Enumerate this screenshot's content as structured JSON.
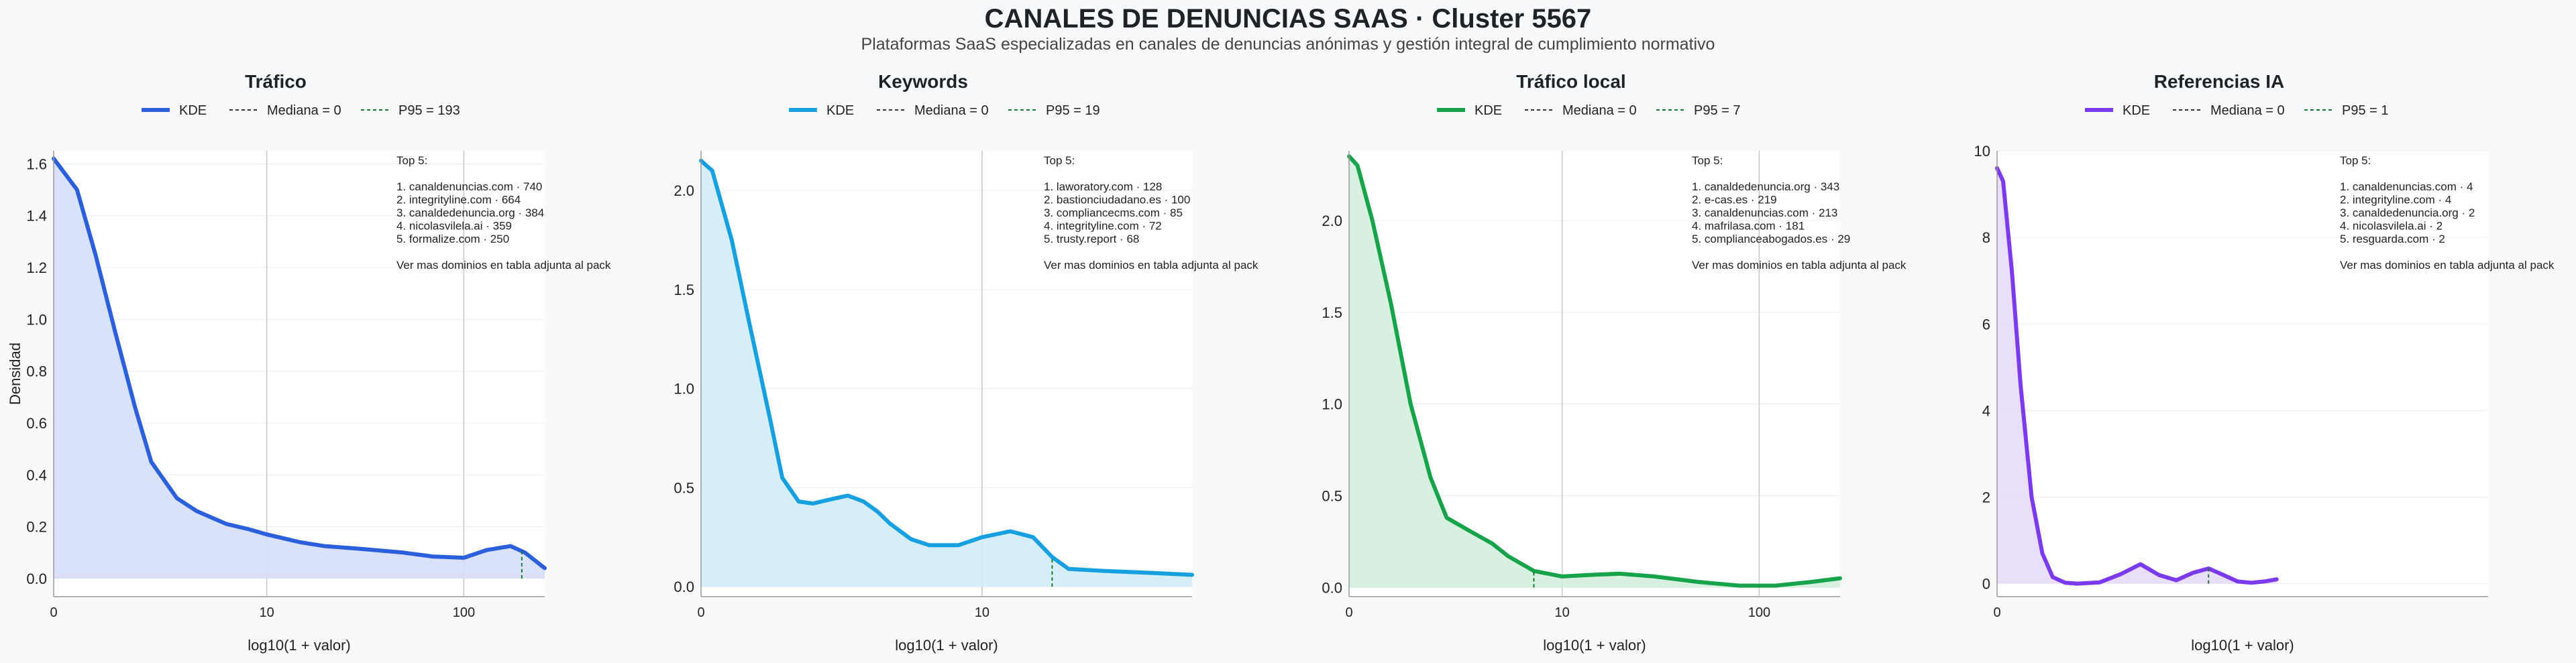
{
  "title": "CANALES DE DENUNCIAS SAAS · Cluster 5567",
  "subtitle": "Plataformas SaaS especializadas en canales de denuncias anónimas y gestión integral de cumplimiento normativo",
  "chart_data": [
    {
      "type": "area",
      "title": "Tráfico",
      "xlabel": "log10(1 + valor)",
      "ylabel": "Densidad",
      "color": "#2b5fdb",
      "fill": "#d5dffa",
      "xscale": "log10(1 + value)",
      "xlim": [
        0,
        250
      ],
      "ylim": [
        -0.07,
        1.65
      ],
      "yticks": [
        "0.0",
        "0.2",
        "0.4",
        "0.6",
        "0.8",
        "1.0",
        "1.2",
        "1.4",
        "1.6"
      ],
      "ytick_values": [
        0,
        0.2,
        0.4,
        0.6,
        0.8,
        1.0,
        1.2,
        1.4,
        1.6
      ],
      "xticks": [
        "0",
        "10",
        "100"
      ],
      "xtick_values": [
        0,
        10,
        100
      ],
      "legend": [
        "KDE",
        "Mediana = 0",
        "P95 = 193"
      ],
      "median": 0,
      "p95": 193,
      "series": [
        {
          "name": "KDE",
          "x": [
            0,
            0.3,
            0.6,
            1,
            1.5,
            2,
            3,
            4,
            6,
            8,
            10,
            15,
            20,
            30,
            50,
            70,
            100,
            130,
            170,
            200,
            250
          ],
          "y": [
            1.62,
            1.5,
            1.25,
            0.95,
            0.66,
            0.45,
            0.31,
            0.26,
            0.21,
            0.19,
            0.17,
            0.14,
            0.125,
            0.115,
            0.1,
            0.085,
            0.08,
            0.11,
            0.125,
            0.1,
            0.04
          ]
        }
      ],
      "annotation": [
        "Top 5:",
        "",
        "1. canaldenuncias.com · 740",
        "2. integrityline.com · 664",
        "3. canaldedenuncia.org · 384",
        "4. nicolasvilela.ai · 359",
        "5. formalize.com · 250",
        "",
        "Ver mas dominios en tabla adjunta al pack"
      ]
    },
    {
      "type": "area",
      "title": "Keywords",
      "xlabel": "log10(1 + valor)",
      "ylabel": "",
      "color": "#17a0e0",
      "fill": "#d2ecfa",
      "xscale": "log10(1 + value)",
      "xlim": [
        0,
        65
      ],
      "ylim": [
        -0.05,
        2.2
      ],
      "yticks": [
        "0.0",
        "0.5",
        "1.0",
        "1.5",
        "2.0"
      ],
      "ytick_values": [
        0,
        0.5,
        1.0,
        1.5,
        2.0
      ],
      "xticks": [
        "0",
        "10"
      ],
      "xtick_values": [
        0,
        10
      ],
      "legend": [
        "KDE",
        "Mediana = 0",
        "P95 = 19"
      ],
      "median": 0,
      "p95": 19,
      "series": [
        {
          "name": "KDE",
          "x": [
            0,
            0.1,
            0.3,
            0.5,
            0.8,
            1,
            1.3,
            1.6,
            2,
            2.5,
            3,
            3.5,
            4,
            5,
            6,
            8,
            10,
            13,
            16,
            19,
            22,
            30,
            45,
            65
          ],
          "y": [
            2.15,
            2.1,
            1.75,
            1.35,
            0.85,
            0.55,
            0.43,
            0.42,
            0.44,
            0.46,
            0.43,
            0.38,
            0.32,
            0.24,
            0.21,
            0.21,
            0.25,
            0.28,
            0.25,
            0.15,
            0.09,
            0.08,
            0.07,
            0.06
          ]
        }
      ],
      "annotation": [
        "Top 5:",
        "",
        "1. laworatory.com · 128",
        "2. bastionciudadano.es · 100",
        "3. compliancecms.com · 85",
        "4. integrityline.com · 72",
        "5. trusty.report · 68",
        "",
        "Ver mas dominios en tabla adjunta al pack"
      ]
    },
    {
      "type": "area",
      "title": "Tráfico local",
      "xlabel": "log10(1 + valor)",
      "ylabel": "",
      "color": "#16a34a",
      "fill": "#d3eedb",
      "xscale": "log10(1 + value)",
      "xlim": [
        0,
        250
      ],
      "ylim": [
        -0.05,
        2.38
      ],
      "yticks": [
        "0.0",
        "0.5",
        "1.0",
        "1.5",
        "2.0"
      ],
      "ytick_values": [
        0,
        0.5,
        1.0,
        1.5,
        2.0
      ],
      "xticks": [
        "0",
        "10",
        "100"
      ],
      "xtick_values": [
        0,
        10,
        100
      ],
      "legend": [
        "KDE",
        "Mediana = 0",
        "P95 = 7"
      ],
      "median": 0,
      "p95": 7,
      "series": [
        {
          "name": "KDE",
          "x": [
            0,
            0.1,
            0.3,
            0.6,
            1,
            1.5,
            2,
            3,
            4,
            5,
            7,
            10,
            15,
            20,
            30,
            50,
            80,
            120,
            180,
            250
          ],
          "y": [
            2.35,
            2.3,
            2.0,
            1.55,
            1.0,
            0.6,
            0.38,
            0.3,
            0.24,
            0.17,
            0.09,
            0.06,
            0.07,
            0.075,
            0.06,
            0.03,
            0.01,
            0.01,
            0.03,
            0.05
          ]
        }
      ],
      "annotation": [
        "Top 5:",
        "",
        "1. canaldedenuncia.org · 343",
        "2. e-cas.es · 219",
        "3. canaldenuncias.com · 213",
        "4. mafrilasa.com · 181",
        "5. complianceabogados.es · 29",
        "",
        "Ver mas dominios en tabla adjunta al pack"
      ]
    },
    {
      "type": "area",
      "title": "Referencias IA",
      "xlabel": "log10(1 + valor)",
      "ylabel": "",
      "color": "#7c3aed",
      "fill": "#e7dcfb",
      "xscale": "log10(1 + value)",
      "xlim": [
        0,
        4
      ],
      "ylim": [
        -0.3,
        10
      ],
      "yticks": [
        "0",
        "2",
        "4",
        "6",
        "8",
        "10"
      ],
      "ytick_values": [
        0,
        2,
        4,
        6,
        8,
        10
      ],
      "xticks": [
        "0"
      ],
      "xtick_values": [
        0
      ],
      "legend": [
        "KDE",
        "Mediana = 0",
        "P95 = 1"
      ],
      "median": 0,
      "p95": 1,
      "series": [
        {
          "name": "KDE",
          "x": [
            0,
            0.02,
            0.05,
            0.08,
            0.12,
            0.16,
            0.2,
            0.25,
            0.3,
            0.4,
            0.5,
            0.6,
            0.7,
            0.8,
            0.9,
            1.0,
            1.1,
            1.2,
            1.3,
            1.4,
            1.5
          ],
          "y": [
            9.6,
            9.3,
            7.2,
            4.6,
            2.0,
            0.7,
            0.15,
            0.02,
            0.0,
            0.03,
            0.22,
            0.45,
            0.2,
            0.08,
            0.25,
            0.35,
            0.2,
            0.05,
            0.02,
            0.05,
            0.1
          ]
        }
      ],
      "annotation": [
        "Top 5:",
        "",
        "1. canaldenuncias.com · 4",
        "2. integrityline.com · 4",
        "3. canaldedenuncia.org · 2",
        "4. nicolasvilela.ai · 2",
        "5. resguarda.com · 2",
        "",
        "Ver mas dominios en tabla adjunta al pack"
      ]
    }
  ]
}
